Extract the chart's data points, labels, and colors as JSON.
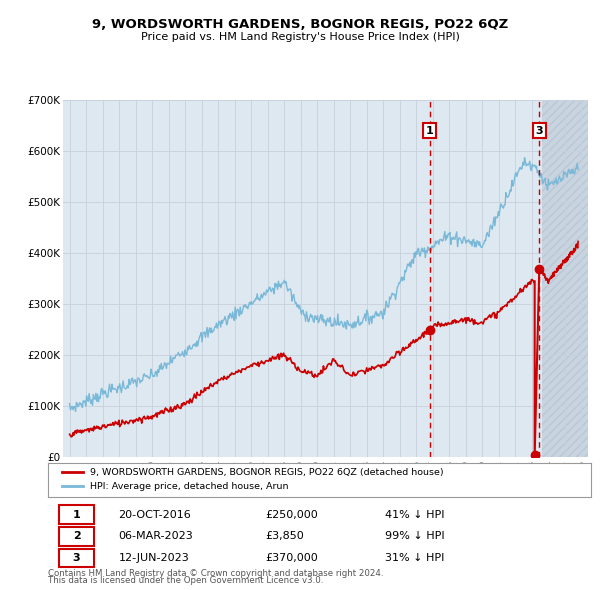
{
  "title": "9, WORDSWORTH GARDENS, BOGNOR REGIS, PO22 6QZ",
  "subtitle": "Price paid vs. HM Land Registry's House Price Index (HPI)",
  "background_color": "#ffffff",
  "plot_bg_color": "#dde8f0",
  "hatch_bg_color": "#c8d4e0",
  "legend_label_red": "9, WORDSWORTH GARDENS, BOGNOR REGIS, PO22 6QZ (detached house)",
  "legend_label_blue": "HPI: Average price, detached house, Arun",
  "footer_line1": "Contains HM Land Registry data © Crown copyright and database right 2024.",
  "footer_line2": "This data is licensed under the Open Government Licence v3.0.",
  "t1_date": "20-OCT-2016",
  "t1_price": "£250,000",
  "t1_pct": "41% ↓ HPI",
  "t1_x": 2016.8,
  "t1_y": 250000,
  "t2_date": "06-MAR-2023",
  "t2_price": "£3,850",
  "t2_pct": "99% ↓ HPI",
  "t2_x": 2023.17,
  "t2_y": 3850,
  "t3_date": "12-JUN-2023",
  "t3_price": "£370,000",
  "t3_pct": "31% ↓ HPI",
  "t3_x": 2023.45,
  "t3_y": 370000,
  "ylim": [
    0,
    700000
  ],
  "xlim_start": 1994.6,
  "xlim_end": 2026.4,
  "hatch_start": 2023.6,
  "red_color": "#cc0000",
  "blue_color": "#7ab8d8",
  "grid_color": "#c8d0dc"
}
